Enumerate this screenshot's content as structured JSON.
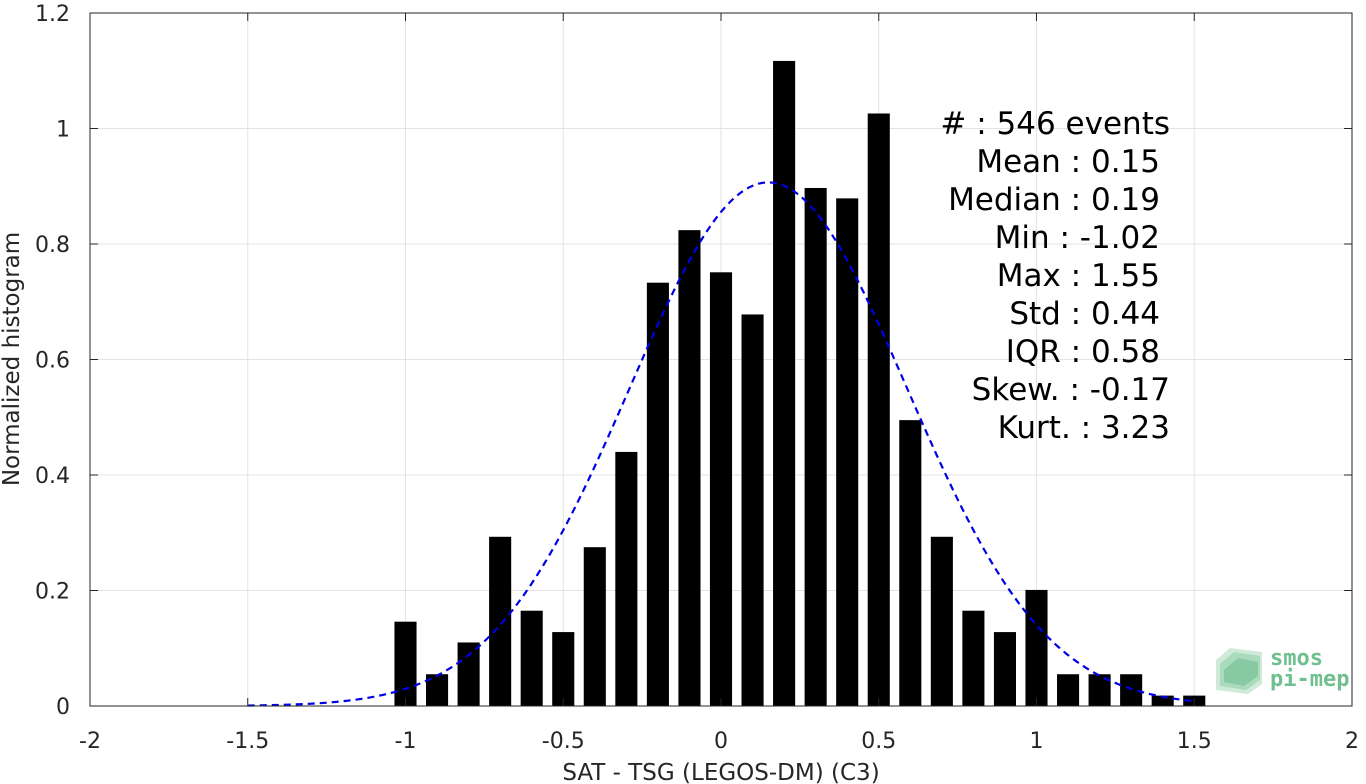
{
  "chart_data": {
    "type": "bar",
    "xlabel": "SAT - TSG (LEGOS-DM) (C3)",
    "ylabel": "Normalized histogram",
    "xlim": [
      -2,
      2
    ],
    "ylim": [
      0,
      1.2
    ],
    "xticks": [
      -2,
      -1.5,
      -1,
      -0.5,
      0,
      0.5,
      1,
      1.5,
      2
    ],
    "xtick_labels": [
      "-2",
      "-1.5",
      "-1",
      "-0.5",
      "0",
      "0.5",
      "1",
      "1.5",
      "2"
    ],
    "yticks": [
      0,
      0.2,
      0.4,
      0.6,
      0.8,
      1,
      1.2
    ],
    "ytick_labels": [
      "0",
      "0.2",
      "0.4",
      "0.6",
      "0.8",
      "1",
      "1.2"
    ],
    "grid": true,
    "bar_width": 0.07,
    "bar_color": "#000000",
    "bars": {
      "x": [
        -1.0,
        -0.9,
        -0.8,
        -0.7,
        -0.6,
        -0.5,
        -0.4,
        -0.3,
        -0.2,
        -0.1,
        0.0,
        0.1,
        0.2,
        0.3,
        0.4,
        0.5,
        0.6,
        0.7,
        0.8,
        0.9,
        1.0,
        1.1,
        1.2,
        1.3,
        1.4,
        1.5
      ],
      "values": [
        0.146,
        0.055,
        0.11,
        0.293,
        0.165,
        0.128,
        0.275,
        0.44,
        0.733,
        0.824,
        0.751,
        0.678,
        1.117,
        0.897,
        0.879,
        1.026,
        0.495,
        0.293,
        0.165,
        0.128,
        0.201,
        0.055,
        0.055,
        0.055,
        0.018,
        0.018
      ]
    },
    "fit_curve": {
      "type": "normal",
      "mean": 0.15,
      "std": 0.44,
      "x_range": [
        -1.5,
        1.5
      ],
      "color": "#0000e6",
      "style": "dashed"
    },
    "annotations": [
      "#  : 546 events",
      "Mean : 0.15",
      "Median : 0.19",
      "Min : -1.02",
      "Max : 1.55",
      "Std : 0.44",
      "IQR : 0.58",
      "Skew. : -0.17",
      "Kurt. : 3.23"
    ]
  },
  "logo": {
    "line1": "smos",
    "line2": "pi-mep",
    "color": "#6fbf8f"
  }
}
